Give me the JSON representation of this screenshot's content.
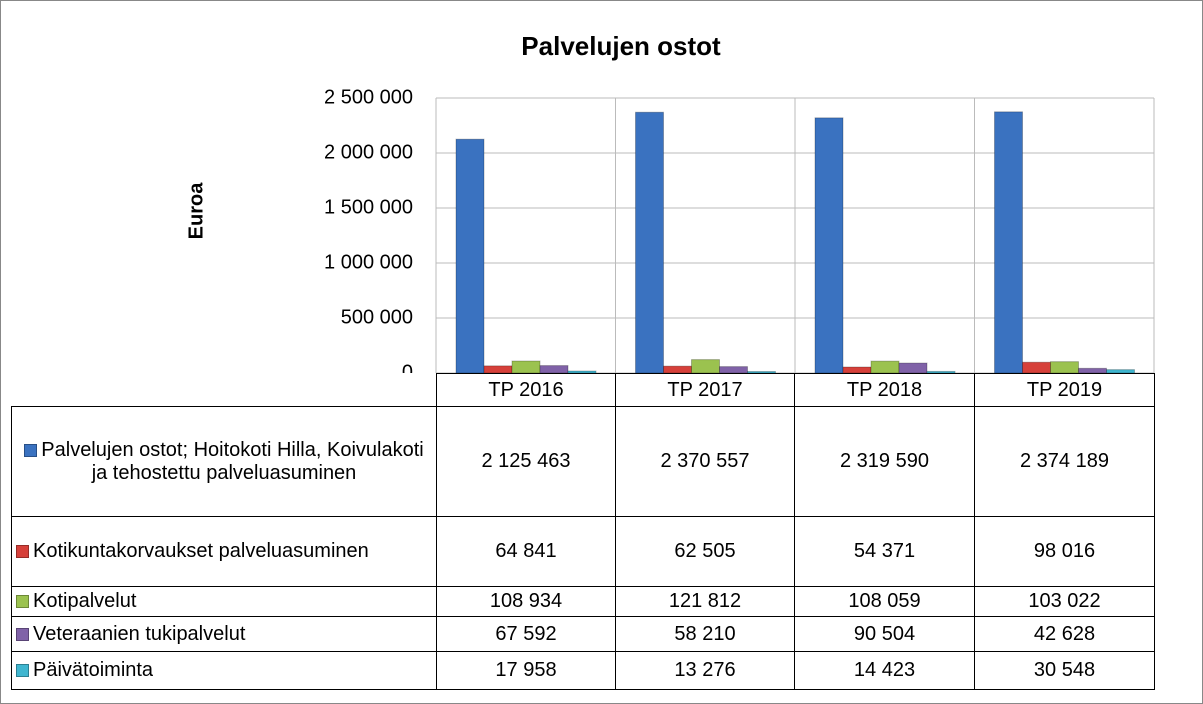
{
  "chart_data": {
    "type": "bar",
    "title": "Palvelujen ostot",
    "ylabel": "Euroa",
    "categories": [
      "TP 2016",
      "TP 2017",
      "TP 2018",
      "TP 2019"
    ],
    "ylim": [
      0,
      2500000
    ],
    "yticks": [
      0,
      {
        "value": 500000,
        "label": "500 000"
      },
      {
        "value": 1000000,
        "label": "1 000 000"
      },
      {
        "value": 1500000,
        "label": "1 500 000"
      },
      {
        "value": 2000000,
        "label": "2 000 000"
      },
      {
        "value": 2500000,
        "label": "2 500 000"
      }
    ],
    "grid": true,
    "series": [
      {
        "name": "Palvelujen ostot; Hoitokoti Hilla, Koivulakoti ja tehostettu palveluasuminen",
        "color": "#3a72c0",
        "values": [
          2125463,
          2370557,
          2319590,
          2374189
        ],
        "value_labels": [
          "2 125 463",
          "2 370 557",
          "2 319 590",
          "2 374 189"
        ]
      },
      {
        "name": "Kotikuntakorvaukset palveluasuminen",
        "color": "#d6403a",
        "values": [
          64841,
          62505,
          54371,
          98016
        ],
        "value_labels": [
          "64 841",
          "62 505",
          "54 371",
          "98 016"
        ]
      },
      {
        "name": "Kotipalvelut",
        "color": "#9bc24f",
        "values": [
          108934,
          121812,
          108059,
          103022
        ],
        "value_labels": [
          "108 934",
          "121 812",
          "108 059",
          "103 022"
        ]
      },
      {
        "name": "Veteraanien tukipalvelut",
        "color": "#8062a8",
        "values": [
          67592,
          58210,
          90504,
          42628
        ],
        "value_labels": [
          "67 592",
          "58 210",
          "90 504",
          "42 628"
        ]
      },
      {
        "name": "Päivätoiminta",
        "color": "#3fb6d0",
        "values": [
          17958,
          13276,
          14423,
          30548
        ],
        "value_labels": [
          "17 958",
          "13 276",
          "14 423",
          "30 548"
        ]
      }
    ]
  }
}
